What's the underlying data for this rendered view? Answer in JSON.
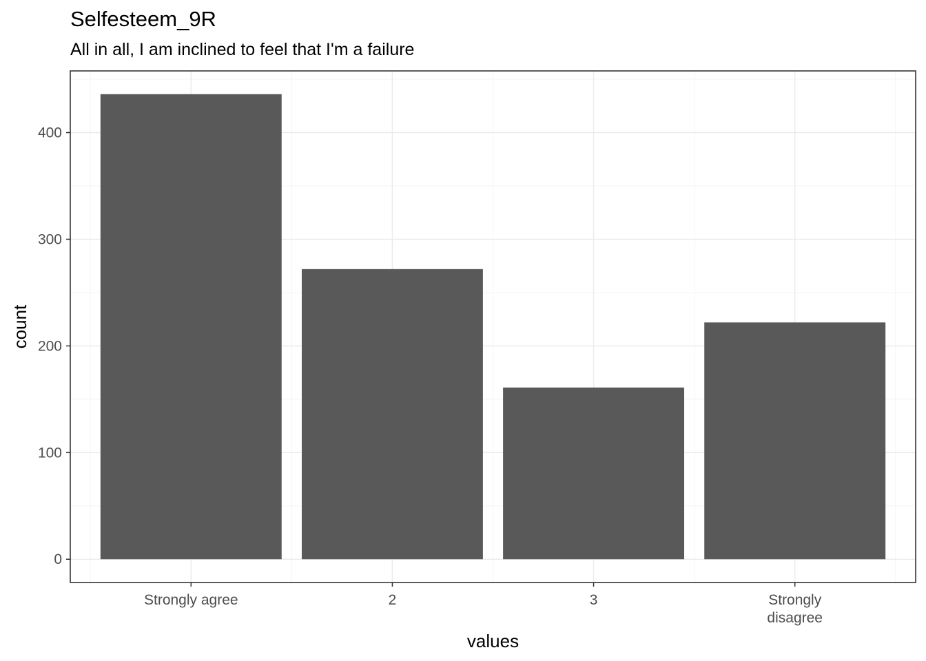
{
  "chart_data": {
    "type": "bar",
    "title": "Selfesteem_9R",
    "subtitle": "All in all, I am inclined to feel that I'm a failure",
    "xlabel": "values",
    "ylabel": "count",
    "categories": [
      "Strongly agree",
      "2",
      "3",
      "Strongly disagree"
    ],
    "category_label_lines": [
      [
        "Strongly agree"
      ],
      [
        "2"
      ],
      [
        "3"
      ],
      [
        "Strongly",
        "disagree"
      ]
    ],
    "values": [
      436,
      272,
      161,
      222
    ],
    "ylim": [
      -21.8,
      457.8
    ],
    "y_ticks": [
      0,
      100,
      200,
      300,
      400
    ],
    "y_tick_labels": [
      "0",
      "100",
      "200",
      "300",
      "400"
    ],
    "bar_color": "#595959",
    "grid": true,
    "grid_major_color": "#ebebeb",
    "grid_minor_color": "#f5f5f5",
    "panel_border_color": "#333333"
  }
}
